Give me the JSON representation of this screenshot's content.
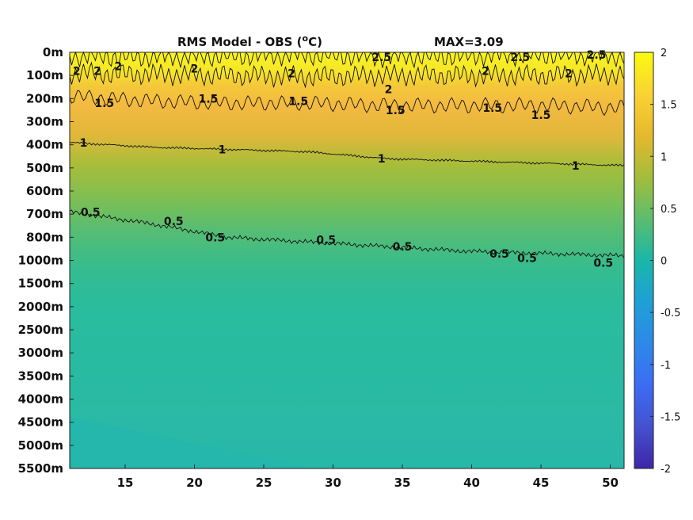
{
  "chart_data": {
    "type": "heatmap",
    "title_main": "RMS Model - OBS (",
    "title_unit_sup": "o",
    "title_unit_tail": "C)",
    "max_label": "MAX=3.09",
    "x_ticks": [
      15,
      20,
      25,
      30,
      35,
      40,
      45,
      50
    ],
    "xlim": [
      11,
      51
    ],
    "y_ticks": [
      "0m",
      "100m",
      "200m",
      "300m",
      "400m",
      "500m",
      "600m",
      "700m",
      "800m",
      "1000m",
      "1500m",
      "2000m",
      "2500m",
      "3000m",
      "3500m",
      "4000m",
      "4500m",
      "5000m",
      "5500m"
    ],
    "colorbar": {
      "ticks": [
        "2",
        "1.5",
        "1",
        "0.5",
        "0",
        "-0.5",
        "-1",
        "-1.5",
        "-2"
      ],
      "lim": [
        -2,
        2
      ]
    },
    "contours": [
      {
        "level": "2.5",
        "depth_index": [
          0.15,
          0.2,
          0.15,
          0.1,
          0.2,
          0.15,
          0.1,
          0.15
        ]
      },
      {
        "level": "2",
        "depth_index": [
          0.9,
          0.95,
          1.0,
          1.05,
          1.0,
          1.0,
          1.0,
          0.95
        ]
      },
      {
        "level": "1.5",
        "depth_index": [
          1.9,
          2.1,
          2.2,
          2.2,
          2.3,
          2.3,
          2.3,
          2.4
        ]
      },
      {
        "level": "1",
        "depth_index": [
          3.9,
          4.1,
          4.2,
          4.3,
          4.6,
          4.7,
          4.8,
          4.9
        ]
      },
      {
        "level": "0.5",
        "depth_index": [
          6.9,
          7.4,
          8.0,
          8.2,
          8.4,
          8.6,
          8.7,
          8.8
        ]
      }
    ],
    "contour_labels": [
      {
        "text": "2.5",
        "x": 33.5,
        "yi": 0.2
      },
      {
        "text": "2.5",
        "x": 43.5,
        "yi": 0.2
      },
      {
        "text": "2.5",
        "x": 49.0,
        "yi": 0.1
      },
      {
        "text": "2",
        "x": 11.5,
        "yi": 0.8
      },
      {
        "text": "2",
        "x": 13.0,
        "yi": 0.8
      },
      {
        "text": "2",
        "x": 14.5,
        "yi": 0.6
      },
      {
        "text": "2",
        "x": 20.0,
        "yi": 0.7
      },
      {
        "text": "2",
        "x": 27.0,
        "yi": 0.9
      },
      {
        "text": "2",
        "x": 34.0,
        "yi": 1.6
      },
      {
        "text": "2",
        "x": 41.0,
        "yi": 0.8
      },
      {
        "text": "2",
        "x": 47.0,
        "yi": 0.9
      },
      {
        "text": "1.5",
        "x": 13.5,
        "yi": 2.2
      },
      {
        "text": "1.5",
        "x": 21.0,
        "yi": 2.0
      },
      {
        "text": "1.5",
        "x": 27.5,
        "yi": 2.1
      },
      {
        "text": "1.5",
        "x": 34.5,
        "yi": 2.5
      },
      {
        "text": "1.5",
        "x": 41.5,
        "yi": 2.4
      },
      {
        "text": "1.5",
        "x": 45.0,
        "yi": 2.7
      },
      {
        "text": "1",
        "x": 12.0,
        "yi": 3.9
      },
      {
        "text": "1",
        "x": 22.0,
        "yi": 4.2
      },
      {
        "text": "1",
        "x": 33.5,
        "yi": 4.6
      },
      {
        "text": "1",
        "x": 47.5,
        "yi": 4.9
      },
      {
        "text": "0.5",
        "x": 12.5,
        "yi": 6.9
      },
      {
        "text": "0.5",
        "x": 18.5,
        "yi": 7.3
      },
      {
        "text": "0.5",
        "x": 21.5,
        "yi": 8.0
      },
      {
        "text": "0.5",
        "x": 29.5,
        "yi": 8.1
      },
      {
        "text": "0.5",
        "x": 35.0,
        "yi": 8.4
      },
      {
        "text": "0.5",
        "x": 42.0,
        "yi": 8.7
      },
      {
        "text": "0.5",
        "x": 44.0,
        "yi": 8.9
      },
      {
        "text": "0.5",
        "x": 49.5,
        "yi": 9.1
      }
    ]
  }
}
